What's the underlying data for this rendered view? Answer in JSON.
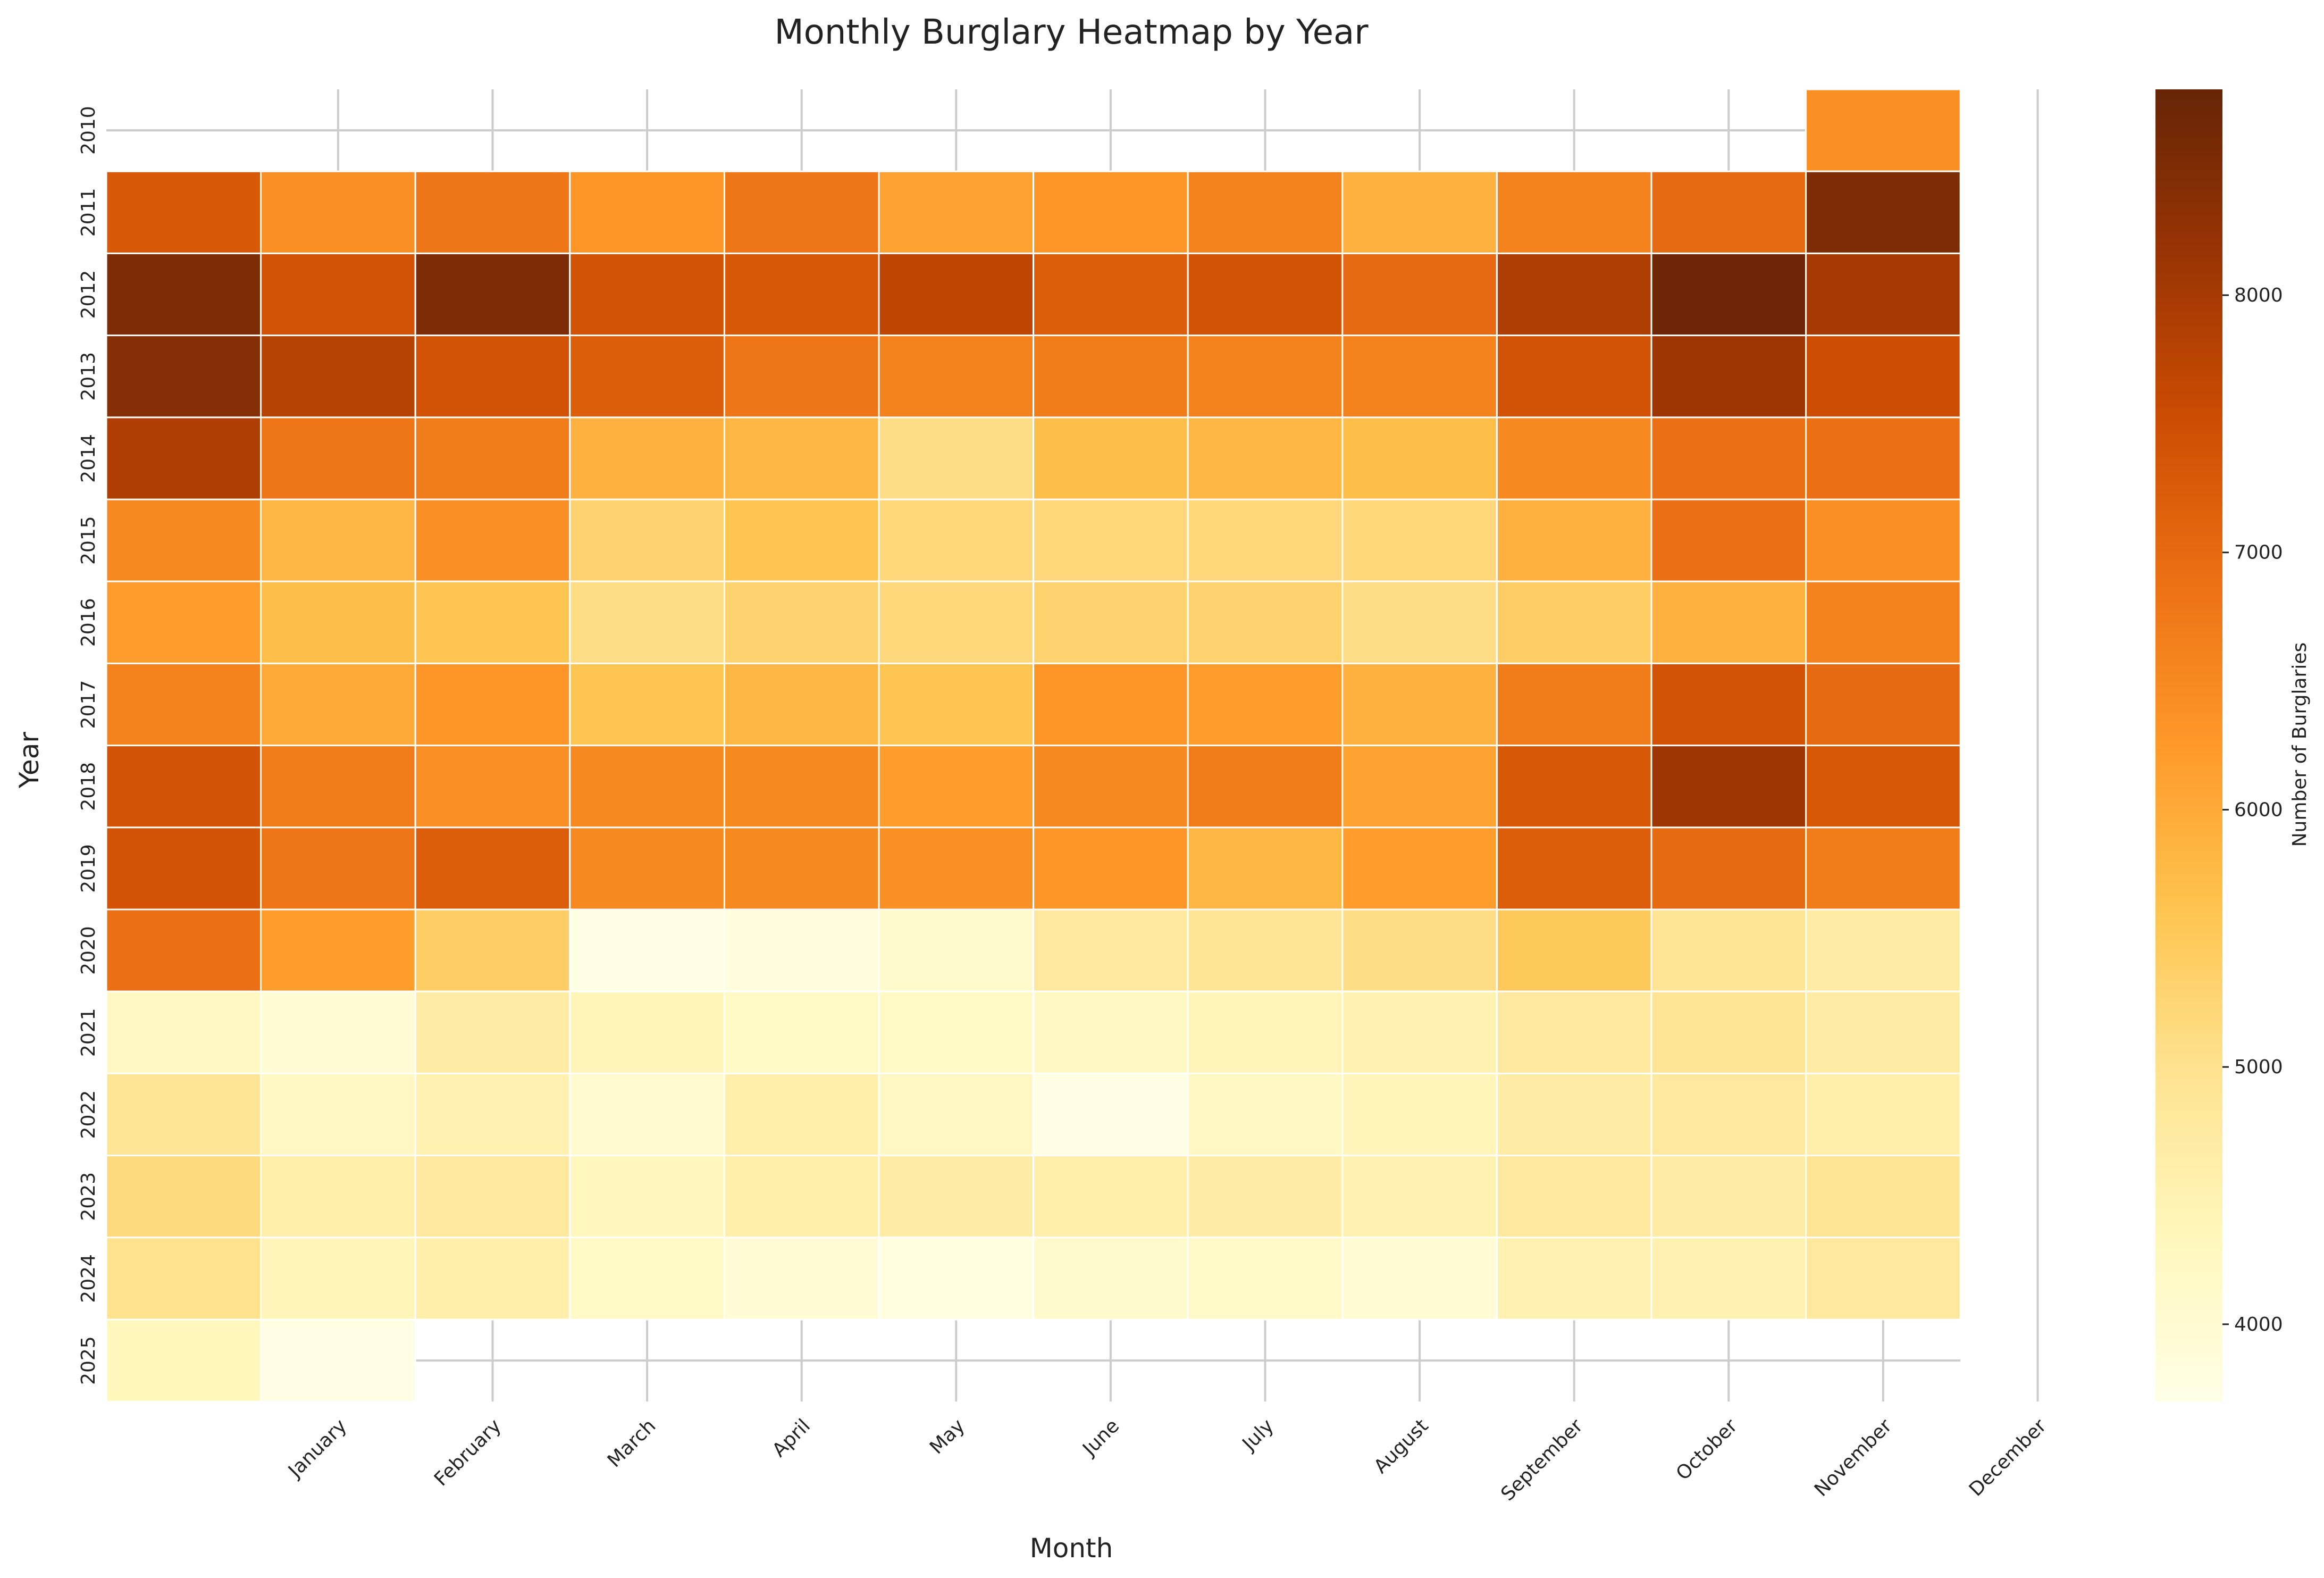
{
  "chart_data": {
    "type": "heatmap",
    "title": "Monthly Burglary Heatmap by Year",
    "xlabel": "Month",
    "ylabel": "Year",
    "colorbar_label": "Number of Burglaries",
    "colormap": "YlOrBr",
    "color_range": [
      3700,
      8800
    ],
    "colorbar_ticks": [
      4000,
      5000,
      6000,
      7000,
      8000
    ],
    "x_tick_labels": [
      "January",
      "February",
      "March",
      "April",
      "May",
      "June",
      "July",
      "August",
      "September",
      "October",
      "November",
      "December"
    ],
    "years": [
      "2010",
      "2011",
      "2012",
      "2013",
      "2014",
      "2015",
      "2016",
      "2017",
      "2018",
      "2019",
      "2020",
      "2021",
      "2022",
      "2023",
      "2024",
      "2025"
    ],
    "column_count": 12,
    "values": [
      [
        null,
        null,
        null,
        null,
        null,
        null,
        null,
        null,
        null,
        null,
        null,
        6400
      ],
      [
        7300,
        6400,
        6800,
        6300,
        6800,
        6100,
        6300,
        6600,
        5900,
        6600,
        7000,
        8500
      ],
      [
        8500,
        7400,
        8500,
        7400,
        7300,
        7700,
        7200,
        7400,
        7000,
        7900,
        8700,
        8000
      ],
      [
        8400,
        7800,
        7400,
        7200,
        6800,
        6600,
        6700,
        6600,
        6600,
        7400,
        8100,
        7500
      ],
      [
        7900,
        6800,
        6700,
        5900,
        5800,
        5100,
        5700,
        5800,
        5700,
        6500,
        6900,
        6900
      ],
      [
        6500,
        5800,
        6400,
        5300,
        5600,
        5200,
        5200,
        5200,
        5200,
        5900,
        6900,
        6400
      ],
      [
        6200,
        5700,
        5600,
        5100,
        5300,
        5200,
        5300,
        5300,
        5100,
        5400,
        5900,
        6600
      ],
      [
        6600,
        6000,
        6300,
        5600,
        5800,
        5600,
        6300,
        6200,
        5900,
        6700,
        7400,
        7000
      ],
      [
        7400,
        6700,
        6400,
        6500,
        6500,
        6200,
        6500,
        6700,
        6100,
        7300,
        8100,
        7300
      ],
      [
        7400,
        6800,
        7200,
        6500,
        6500,
        6400,
        6300,
        5800,
        6200,
        7200,
        7000,
        6700
      ],
      [
        6900,
        6200,
        5400,
        3750,
        3850,
        4100,
        4800,
        4900,
        5100,
        5500,
        4900,
        4700
      ],
      [
        4250,
        3950,
        4700,
        4400,
        4200,
        4200,
        4250,
        4400,
        4500,
        4800,
        4900,
        4700
      ],
      [
        4900,
        4250,
        4500,
        4050,
        4600,
        4250,
        3750,
        4250,
        4400,
        4700,
        4800,
        4600
      ],
      [
        5150,
        4600,
        4800,
        4300,
        4600,
        4700,
        4600,
        4700,
        4500,
        4800,
        4700,
        4900
      ],
      [
        5000,
        4400,
        4600,
        4200,
        3950,
        3800,
        4100,
        4150,
        4000,
        4500,
        4500,
        4800
      ],
      [
        4350,
        3750,
        null,
        null,
        null,
        null,
        null,
        null,
        null,
        null,
        null,
        null
      ]
    ],
    "grid": true,
    "legend": "colorbar-right"
  }
}
